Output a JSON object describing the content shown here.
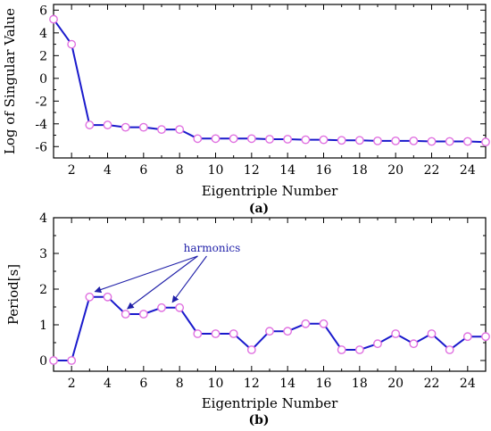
{
  "chart_data": [
    {
      "type": "line",
      "panel_label": "(a)",
      "xlabel": "Eigentriple Number",
      "ylabel": "Log of Singular Value",
      "xlim": [
        1,
        25
      ],
      "ylim": [
        -7,
        6.5
      ],
      "xticks": [
        2,
        4,
        6,
        8,
        10,
        12,
        14,
        16,
        18,
        20,
        22,
        24
      ],
      "yticks": [
        -6,
        -4,
        -2,
        0,
        2,
        4,
        6
      ],
      "grid": false,
      "line_color": "#1a1acc",
      "marker_color": "#e070e0",
      "x": [
        1,
        2,
        3,
        4,
        5,
        6,
        7,
        8,
        9,
        10,
        11,
        12,
        13,
        14,
        15,
        16,
        17,
        18,
        19,
        20,
        21,
        22,
        23,
        24,
        25
      ],
      "y": [
        5.2,
        3.0,
        -4.1,
        -4.1,
        -4.3,
        -4.3,
        -4.5,
        -4.5,
        -5.3,
        -5.3,
        -5.3,
        -5.3,
        -5.35,
        -5.35,
        -5.4,
        -5.4,
        -5.45,
        -5.45,
        -5.5,
        -5.5,
        -5.5,
        -5.55,
        -5.55,
        -5.55,
        -5.6
      ]
    },
    {
      "type": "line",
      "panel_label": "(b)",
      "xlabel": "Eigentriple Number",
      "ylabel": "Period[s]",
      "xlim": [
        1,
        25
      ],
      "ylim": [
        -0.3,
        4
      ],
      "xticks": [
        2,
        4,
        6,
        8,
        10,
        12,
        14,
        16,
        18,
        20,
        22,
        24
      ],
      "yticks": [
        0,
        1,
        2,
        3,
        4
      ],
      "grid": false,
      "line_color": "#1a1acc",
      "marker_color": "#e070e0",
      "x": [
        1,
        2,
        3,
        4,
        5,
        6,
        7,
        8,
        9,
        10,
        11,
        12,
        13,
        14,
        15,
        16,
        17,
        18,
        19,
        20,
        21,
        22,
        23,
        24,
        25
      ],
      "y": [
        0,
        0,
        1.78,
        1.78,
        1.3,
        1.3,
        1.48,
        1.48,
        0.75,
        0.75,
        0.75,
        0.3,
        0.82,
        0.82,
        1.03,
        1.03,
        0.3,
        0.3,
        0.47,
        0.75,
        0.47,
        0.75,
        0.3,
        0.67,
        0.67
      ],
      "annotation": {
        "text": "harmonics",
        "targets": [
          {
            "x": 3,
            "y": 1.78
          },
          {
            "x": 5,
            "y": 1.3
          },
          {
            "x": 7.5,
            "y": 1.48
          }
        ]
      }
    }
  ]
}
